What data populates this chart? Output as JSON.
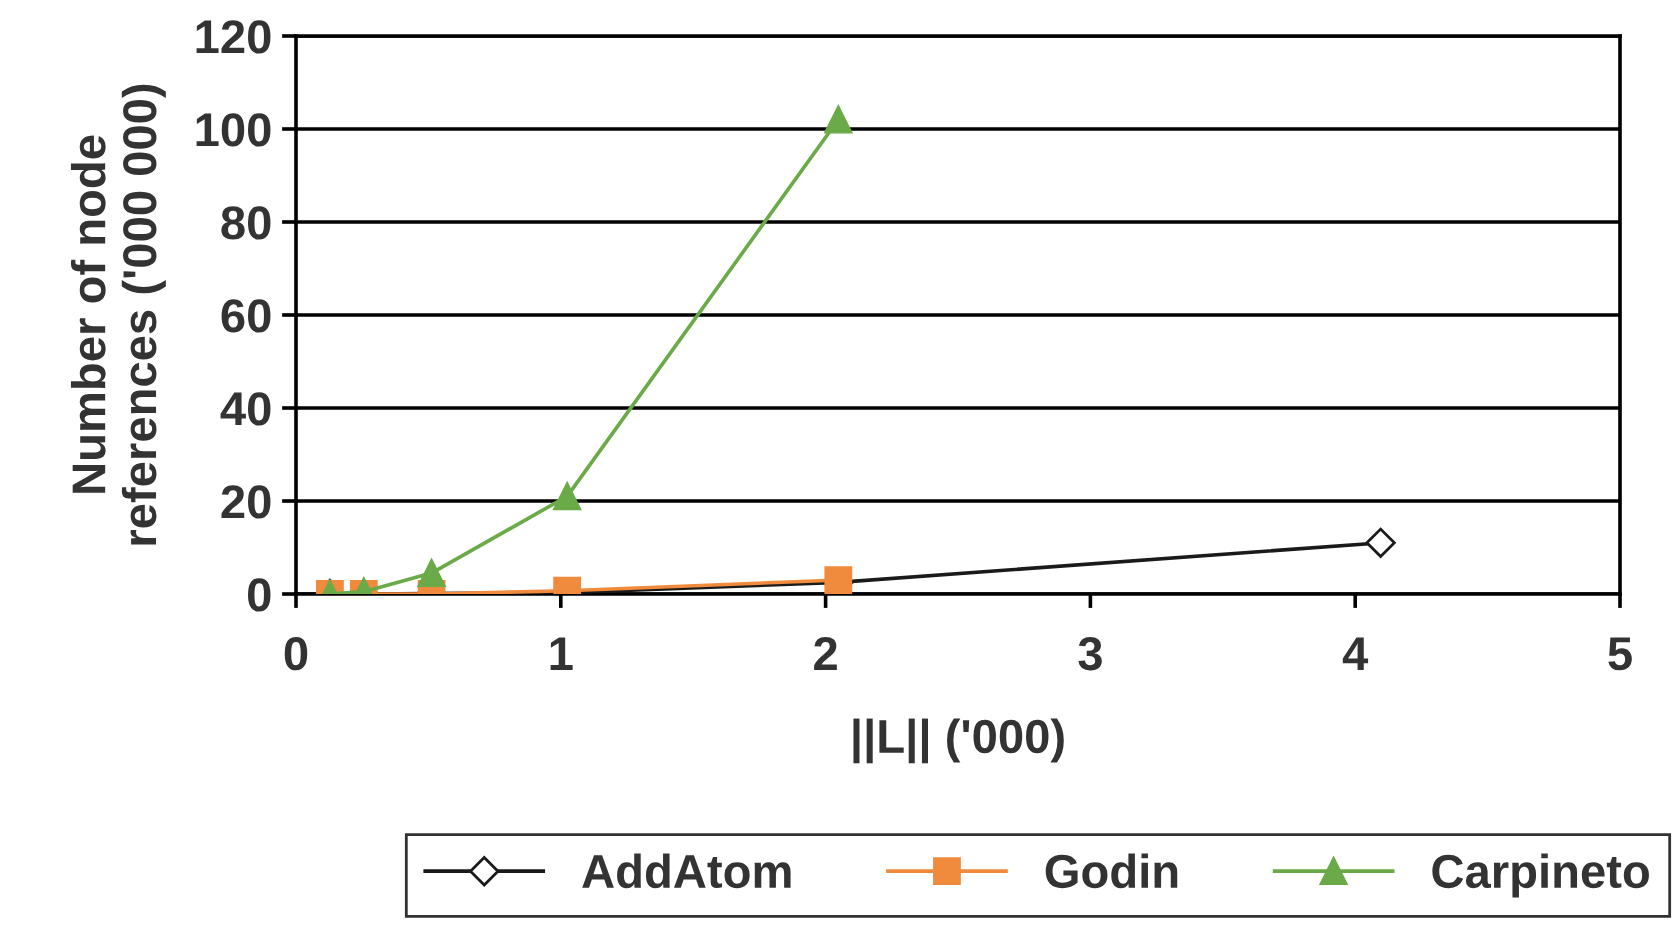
{
  "chart_data": {
    "type": "line",
    "xlabel": "||L|| ('000)",
    "ylabel": "Number of node\nreferences ('000 000)",
    "xlim": [
      0,
      5
    ],
    "xticks": [
      0,
      1,
      2,
      3,
      4,
      5
    ],
    "ylim": [
      0,
      120
    ],
    "yticks": [
      0,
      20,
      40,
      60,
      80,
      100,
      120
    ],
    "grid": "y",
    "legend": "bottom",
    "series": [
      {
        "name": "AddAtom",
        "color": "#1a1a1a",
        "marker": "diamond",
        "x": [
          0.128,
          0.256,
          0.512,
          1.024,
          2.048,
          4.096
        ],
        "values": [
          0,
          0,
          0.1,
          0.3,
          2.5,
          11
        ]
      },
      {
        "name": "Godin",
        "color": "#f08a3c",
        "marker": "square",
        "x": [
          0.128,
          0.256,
          0.512,
          1.024,
          2.048
        ],
        "values": [
          0,
          0,
          0,
          0.7,
          3
        ]
      },
      {
        "name": "Carpineto",
        "color": "#6aaa48",
        "marker": "triangle",
        "x": [
          0.128,
          0.256,
          0.512,
          1.024,
          2.048
        ],
        "values": [
          0,
          0.5,
          4.5,
          21,
          102
        ]
      }
    ]
  }
}
